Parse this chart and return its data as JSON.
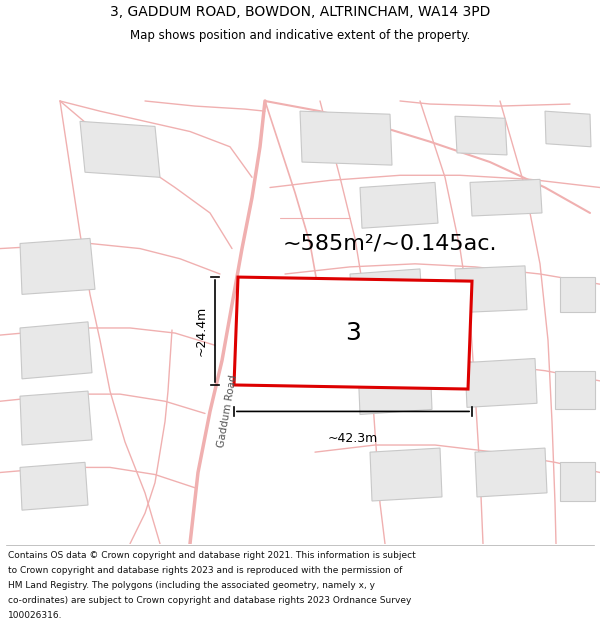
{
  "title_line1": "3, GADDUM ROAD, BOWDON, ALTRINCHAM, WA14 3PD",
  "title_line2": "Map shows position and indicative extent of the property.",
  "area_text": "~585m²/~0.145ac.",
  "property_number": "3",
  "dim_width": "~42.3m",
  "dim_height": "~24.4m",
  "footer_lines": [
    "Contains OS data © Crown copyright and database right 2021. This information is subject",
    "to Crown copyright and database rights 2023 and is reproduced with the permission of",
    "HM Land Registry. The polygons (including the associated geometry, namely x, y",
    "co-ordinates) are subject to Crown copyright and database rights 2023 Ordnance Survey",
    "100026316."
  ],
  "map_bg": "#ffffff",
  "road_color": "#f0b0b0",
  "property_edge": "#dd0000",
  "building_fill": "#e8e8e8",
  "building_edge": "#c8c8c8",
  "road_label": "Gaddum Road",
  "title_fontsize": 10,
  "subtitle_fontsize": 8.5,
  "area_fontsize": 16,
  "dim_fontsize": 9,
  "footer_fontsize": 6.5,
  "road_lw": 1.0,
  "property_lw": 2.2,
  "building_lw": 0.8
}
